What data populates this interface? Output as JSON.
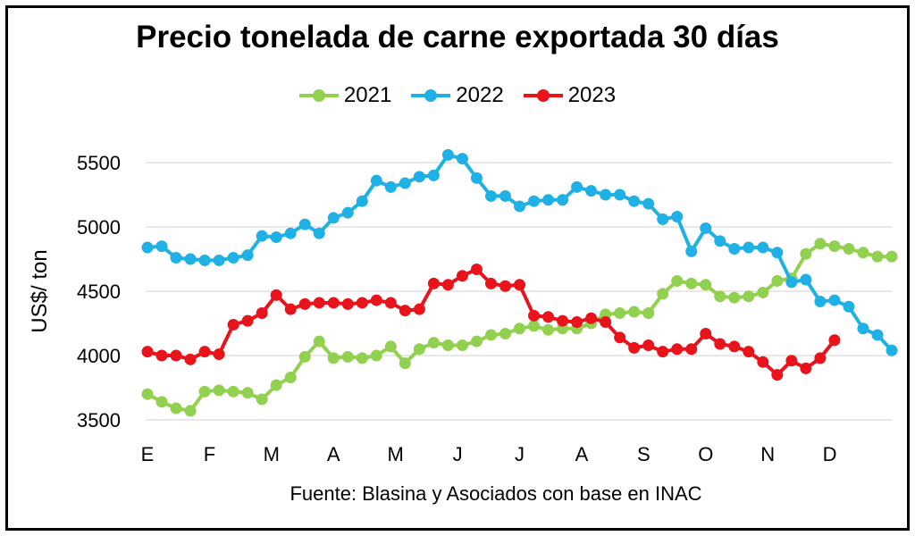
{
  "colors": {
    "2021": "#92d050",
    "2022": "#1fb1e6",
    "2023": "#e8131b"
  },
  "chart_data": {
    "type": "line",
    "title": "Precio tonelada de carne exportada 30 días",
    "ylabel": "US$/ ton",
    "source": "Fuente: Blasina y Asociados con base en INAC",
    "ylim": [
      3500,
      5500
    ],
    "yticks": [
      3500,
      4000,
      4500,
      5000,
      5500
    ],
    "month_labels": [
      "E",
      "F",
      "M",
      "A",
      "M",
      "J",
      "J",
      "A",
      "S",
      "O",
      "N",
      "D"
    ],
    "grid": true,
    "legend": "top-center",
    "series": [
      {
        "name": "2021",
        "color": "#92d050",
        "values": [
          3700,
          3640,
          3590,
          3570,
          3720,
          3730,
          3720,
          3710,
          3660,
          3770,
          3830,
          3990,
          4110,
          3980,
          3990,
          3980,
          4000,
          4070,
          3940,
          4050,
          4100,
          4080,
          4080,
          4110,
          4160,
          4170,
          4210,
          4230,
          4200,
          4210,
          4210,
          4250,
          4320,
          4330,
          4340,
          4330,
          4480,
          4580,
          4560,
          4550,
          4460,
          4450,
          4460,
          4490,
          4580,
          4600,
          4790,
          4870,
          4850,
          4830,
          4800,
          4770,
          4770
        ]
      },
      {
        "name": "2022",
        "color": "#1fb1e6",
        "values": [
          4840,
          4850,
          4760,
          4750,
          4740,
          4740,
          4760,
          4780,
          4930,
          4920,
          4950,
          5020,
          4950,
          5070,
          5110,
          5200,
          5360,
          5310,
          5340,
          5390,
          5400,
          5560,
          5530,
          5380,
          5240,
          5240,
          5160,
          5200,
          5210,
          5210,
          5310,
          5280,
          5250,
          5250,
          5200,
          5180,
          5060,
          5080,
          4810,
          4990,
          4890,
          4830,
          4840,
          4840,
          4800,
          4570,
          4590,
          4420,
          4430,
          4380,
          4210,
          4160,
          4040
        ]
      },
      {
        "name": "2023",
        "color": "#e8131b",
        "values": [
          4030,
          4000,
          4000,
          3970,
          4030,
          4010,
          4240,
          4270,
          4330,
          4470,
          4360,
          4400,
          4410,
          4410,
          4400,
          4410,
          4430,
          4410,
          4350,
          4360,
          4560,
          4550,
          4620,
          4670,
          4560,
          4540,
          4550,
          4310,
          4300,
          4270,
          4260,
          4290,
          4260,
          4140,
          4060,
          4080,
          4030,
          4050,
          4050,
          4170,
          4090,
          4070,
          4030,
          3950,
          3850,
          3960,
          3900,
          3980,
          4120
        ]
      }
    ]
  }
}
